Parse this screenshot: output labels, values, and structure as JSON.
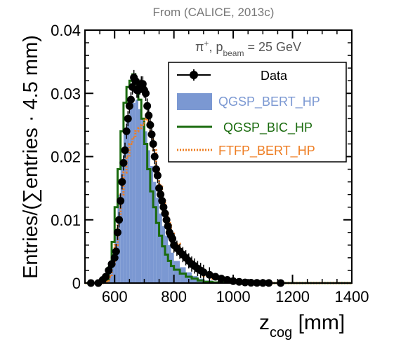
{
  "header": "From (CALICE, 2013c)",
  "chart_data": {
    "type": "line",
    "xlabel_main": "z",
    "xlabel_sub": "cog",
    "xlabel_unit": " [mm]",
    "ylabel": "Entries/(∑entries · 4.5 mm)",
    "xlim": [
      500,
      1400
    ],
    "ylim": [
      0,
      0.04
    ],
    "xticks": [
      "600",
      "800",
      "1000",
      "1200",
      "1400"
    ],
    "yticks": [
      "0",
      "0.01",
      "0.02",
      "0.03",
      "0.04"
    ],
    "annotation": {
      "particle": "π",
      "charge": "+",
      "p": ", p",
      "p_sub": "beam",
      "value": " = 25 GeV"
    },
    "legend_entries": [
      "Data",
      "QGSP_BERT_HP",
      "QGSP_BIC_HP",
      "FTFP_BERT_HP"
    ],
    "colors": {
      "data": "#000000",
      "qgsp_bert_hp": "#7b98d2",
      "qgsp_bic_hp": "#1a6b0e",
      "ftfp_bert_hp": "#ee7d22",
      "header": "#777777"
    },
    "bin_edges": [
      500,
      540,
      560,
      580,
      590,
      600,
      610,
      620,
      630,
      640,
      650,
      660,
      670,
      680,
      690,
      700,
      710,
      720,
      730,
      740,
      750,
      760,
      770,
      780,
      790,
      800,
      820,
      840,
      860,
      880,
      900,
      930,
      960,
      1000,
      1050,
      1100,
      1150,
      1200,
      1400
    ],
    "series": [
      {
        "name": "QGSP_BERT_HP",
        "style": "filled-step",
        "values": [
          0,
          0,
          0.0003,
          0.0015,
          0.0045,
          0.0085,
          0.014,
          0.019,
          0.0235,
          0.0265,
          0.028,
          0.0285,
          0.029,
          0.0275,
          0.026,
          0.024,
          0.021,
          0.0185,
          0.016,
          0.0135,
          0.011,
          0.009,
          0.0075,
          0.006,
          0.0048,
          0.0035,
          0.0025,
          0.0017,
          0.0011,
          0.0007,
          0.0004,
          0.0002,
          0.0001,
          5e-05,
          2e-05,
          0,
          0,
          0
        ]
      },
      {
        "name": "QGSP_BIC_HP",
        "style": "step",
        "values": [
          0,
          0,
          0.0004,
          0.0025,
          0.0065,
          0.012,
          0.018,
          0.024,
          0.0285,
          0.031,
          0.032,
          0.033,
          0.0315,
          0.029,
          0.026,
          0.022,
          0.018,
          0.0145,
          0.012,
          0.0095,
          0.0075,
          0.0058,
          0.0045,
          0.0035,
          0.0027,
          0.0021,
          0.0015,
          0.001,
          0.0007,
          0.0004,
          0.0002,
          0.0001,
          5e-05,
          2e-05,
          0,
          0,
          0,
          0
        ]
      },
      {
        "name": "FTFP_BERT_HP",
        "style": "dotted-step",
        "values": [
          0,
          0,
          0.0002,
          0.001,
          0.003,
          0.006,
          0.01,
          0.014,
          0.0175,
          0.02,
          0.022,
          0.023,
          0.024,
          0.0245,
          0.025,
          0.026,
          0.0255,
          0.0235,
          0.021,
          0.018,
          0.0155,
          0.013,
          0.011,
          0.0095,
          0.008,
          0.0062,
          0.0047,
          0.0035,
          0.0025,
          0.0017,
          0.0011,
          0.0007,
          0.0004,
          0.0002,
          0.0001,
          0,
          0,
          0
        ]
      }
    ],
    "data_points": [
      {
        "x": 520,
        "y": 0
      },
      {
        "x": 545,
        "y": 0
      },
      {
        "x": 560,
        "y": 0.0005
      },
      {
        "x": 570,
        "y": 0.001
      },
      {
        "x": 580,
        "y": 0.002
      },
      {
        "x": 590,
        "y": 0.003
      },
      {
        "x": 600,
        "y": 0.004
      },
      {
        "x": 605,
        "y": 0.005
      },
      {
        "x": 610,
        "y": 0.008
      },
      {
        "x": 615,
        "y": 0.01
      },
      {
        "x": 620,
        "y": 0.013
      },
      {
        "x": 625,
        "y": 0.016
      },
      {
        "x": 630,
        "y": 0.019
      },
      {
        "x": 635,
        "y": 0.021
      },
      {
        "x": 640,
        "y": 0.024
      },
      {
        "x": 645,
        "y": 0.026
      },
      {
        "x": 650,
        "y": 0.028
      },
      {
        "x": 655,
        "y": 0.029
      },
      {
        "x": 660,
        "y": 0.031
      },
      {
        "x": 665,
        "y": 0.0325
      },
      {
        "x": 670,
        "y": 0.032
      },
      {
        "x": 675,
        "y": 0.0305
      },
      {
        "x": 680,
        "y": 0.0305
      },
      {
        "x": 685,
        "y": 0.031
      },
      {
        "x": 690,
        "y": 0.0315
      },
      {
        "x": 695,
        "y": 0.0315
      },
      {
        "x": 700,
        "y": 0.0305
      },
      {
        "x": 705,
        "y": 0.03
      },
      {
        "x": 710,
        "y": 0.028
      },
      {
        "x": 715,
        "y": 0.0265
      },
      {
        "x": 720,
        "y": 0.025
      },
      {
        "x": 725,
        "y": 0.0235
      },
      {
        "x": 730,
        "y": 0.022
      },
      {
        "x": 735,
        "y": 0.02
      },
      {
        "x": 740,
        "y": 0.018
      },
      {
        "x": 745,
        "y": 0.017
      },
      {
        "x": 750,
        "y": 0.015
      },
      {
        "x": 755,
        "y": 0.014
      },
      {
        "x": 760,
        "y": 0.013
      },
      {
        "x": 765,
        "y": 0.012
      },
      {
        "x": 770,
        "y": 0.011
      },
      {
        "x": 775,
        "y": 0.01
      },
      {
        "x": 780,
        "y": 0.009
      },
      {
        "x": 785,
        "y": 0.008
      },
      {
        "x": 790,
        "y": 0.0075
      },
      {
        "x": 795,
        "y": 0.007
      },
      {
        "x": 800,
        "y": 0.006
      },
      {
        "x": 810,
        "y": 0.0055
      },
      {
        "x": 820,
        "y": 0.005
      },
      {
        "x": 830,
        "y": 0.0045
      },
      {
        "x": 840,
        "y": 0.004
      },
      {
        "x": 850,
        "y": 0.0035
      },
      {
        "x": 860,
        "y": 0.003
      },
      {
        "x": 870,
        "y": 0.0027
      },
      {
        "x": 880,
        "y": 0.0023
      },
      {
        "x": 890,
        "y": 0.002
      },
      {
        "x": 900,
        "y": 0.0017
      },
      {
        "x": 920,
        "y": 0.0013
      },
      {
        "x": 940,
        "y": 0.001
      },
      {
        "x": 960,
        "y": 0.0007
      },
      {
        "x": 980,
        "y": 0.0005
      },
      {
        "x": 1000,
        "y": 0.0003
      },
      {
        "x": 1020,
        "y": 0.0002
      },
      {
        "x": 1040,
        "y": 0.0001
      },
      {
        "x": 1060,
        "y": 5e-05
      },
      {
        "x": 1080,
        "y": 3e-05
      },
      {
        "x": 1100,
        "y": 2e-05
      },
      {
        "x": 1120,
        "y": 1e-05
      },
      {
        "x": 1160,
        "y": 0
      }
    ],
    "data_error": 0.0012
  }
}
